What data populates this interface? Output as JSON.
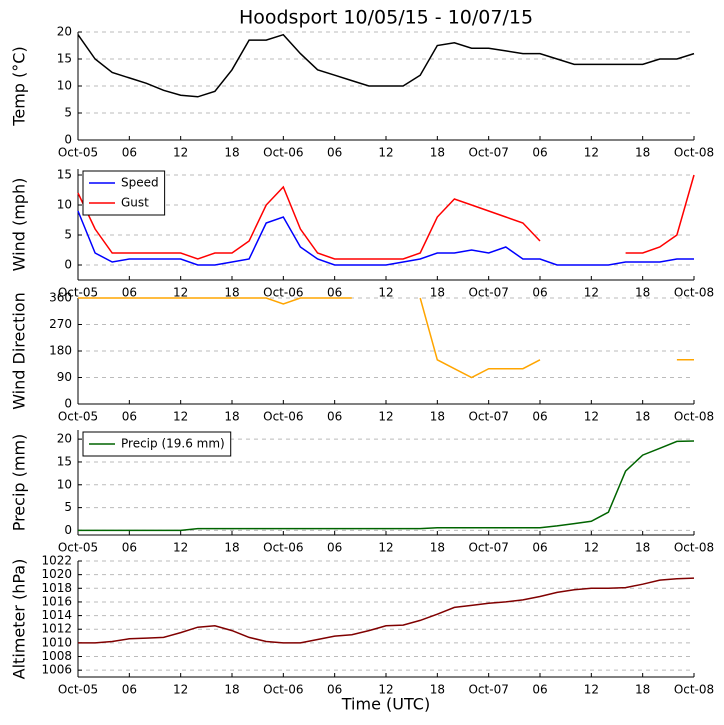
{
  "chart_data": [
    {
      "type": "line",
      "title": "Hoodsport 10/05/15 - 10/07/15",
      "ylabel": "Temp (°C)",
      "color": "#000000",
      "x": [
        0,
        2,
        4,
        6,
        8,
        10,
        12,
        14,
        16,
        18,
        20,
        22,
        24,
        26,
        28,
        30,
        32,
        34,
        36,
        38,
        40,
        42,
        44,
        46,
        48,
        50,
        52,
        54,
        56,
        58,
        60,
        62,
        64,
        66,
        68,
        70,
        72
      ],
      "values": [
        19.5,
        15,
        12.5,
        11.5,
        10.5,
        9.2,
        8.3,
        8,
        9,
        13,
        18.5,
        18.5,
        19.5,
        16,
        13,
        12,
        11,
        10,
        10,
        10,
        12,
        17.5,
        18,
        17,
        17,
        16.5,
        16,
        16,
        15,
        14,
        14,
        14,
        14,
        14,
        15,
        15,
        16
      ],
      "xlim": [
        0,
        72
      ],
      "xticks": [
        {
          "value": 0,
          "label": "Oct-05"
        },
        {
          "value": 6,
          "label": "06"
        },
        12,
        18,
        {
          "value": 24,
          "label": "Oct-06"
        },
        {
          "value": 30,
          "label": "06"
        },
        {
          "value": 36,
          "label": "12"
        },
        {
          "value": 42,
          "label": "18"
        },
        {
          "value": 48,
          "label": "Oct-07"
        },
        {
          "value": 54,
          "label": "06"
        },
        {
          "value": 60,
          "label": "12"
        },
        {
          "value": 66,
          "label": "18"
        },
        {
          "value": 72,
          "label": "Oct-08"
        }
      ],
      "ylim": [
        0,
        20
      ],
      "yticks": [
        0,
        5,
        10,
        15,
        20
      ],
      "grid": true
    },
    {
      "type": "line",
      "ylabel": "Wind (mph)",
      "legend": "upper left",
      "x": [
        0,
        2,
        4,
        6,
        8,
        10,
        12,
        14,
        16,
        18,
        20,
        22,
        24,
        26,
        28,
        30,
        32,
        34,
        36,
        38,
        40,
        42,
        44,
        46,
        48,
        50,
        52,
        54,
        56,
        58,
        60,
        62,
        64,
        66,
        68,
        70,
        72
      ],
      "series": [
        {
          "name": "Speed",
          "color": "#0000ff",
          "values": [
            9,
            2,
            0.5,
            1,
            1,
            1,
            1,
            0,
            0,
            0.5,
            1,
            7,
            8,
            3,
            1,
            0,
            0,
            0,
            0,
            0.5,
            1,
            2,
            2,
            2.5,
            2,
            3,
            1,
            1,
            0,
            0,
            0,
            0,
            0.5,
            0.5,
            0.5,
            1,
            1
          ]
        },
        {
          "name": "Gust",
          "color": "#ff0000",
          "values": [
            12,
            6,
            2,
            2,
            2,
            2,
            2,
            1,
            2,
            2,
            4,
            10,
            13,
            6,
            2,
            1,
            1,
            1,
            1,
            1,
            2,
            8,
            11,
            10,
            9,
            8,
            7,
            4,
            null,
            null,
            null,
            null,
            2,
            2,
            3,
            5,
            15
          ]
        }
      ],
      "xlim": [
        0,
        72
      ],
      "xticks": [
        {
          "value": 0,
          "label": "Oct-05"
        },
        {
          "value": 6,
          "label": "06"
        },
        12,
        18,
        {
          "value": 24,
          "label": "Oct-06"
        },
        {
          "value": 30,
          "label": "06"
        },
        {
          "value": 36,
          "label": "12"
        },
        {
          "value": 42,
          "label": "18"
        },
        {
          "value": 48,
          "label": "Oct-07"
        },
        {
          "value": 54,
          "label": "06"
        },
        {
          "value": 60,
          "label": "12"
        },
        {
          "value": 66,
          "label": "18"
        },
        {
          "value": 72,
          "label": "Oct-08"
        }
      ],
      "ylim": [
        -2.5,
        16
      ],
      "yticks": [
        0,
        5,
        10,
        15
      ],
      "grid": true
    },
    {
      "type": "line",
      "ylabel": "Wind Direction",
      "color": "#ffa500",
      "x": [
        0,
        2,
        4,
        6,
        8,
        10,
        12,
        14,
        16,
        18,
        20,
        22,
        24,
        26,
        28,
        30,
        32,
        34,
        36,
        38,
        40,
        42,
        44,
        46,
        48,
        50,
        52,
        54,
        56,
        58,
        60,
        62,
        64,
        66,
        68,
        70,
        72
      ],
      "values": [
        360,
        360,
        360,
        360,
        360,
        360,
        360,
        360,
        360,
        360,
        360,
        360,
        340,
        360,
        360,
        360,
        360,
        null,
        null,
        null,
        360,
        150,
        120,
        90,
        120,
        120,
        120,
        150,
        null,
        null,
        null,
        null,
        null,
        null,
        null,
        150,
        150
      ],
      "xlim": [
        0,
        72
      ],
      "xticks": [
        {
          "value": 0,
          "label": "Oct-05"
        },
        {
          "value": 6,
          "label": "06"
        },
        12,
        18,
        {
          "value": 24,
          "label": "Oct-06"
        },
        {
          "value": 30,
          "label": "06"
        },
        {
          "value": 36,
          "label": "12"
        },
        {
          "value": 42,
          "label": "18"
        },
        {
          "value": 48,
          "label": "Oct-07"
        },
        {
          "value": 54,
          "label": "06"
        },
        {
          "value": 60,
          "label": "12"
        },
        {
          "value": 66,
          "label": "18"
        },
        {
          "value": 72,
          "label": "Oct-08"
        }
      ],
      "ylim": [
        0,
        360
      ],
      "yticks": [
        0,
        90,
        180,
        270,
        360
      ],
      "grid": true
    },
    {
      "type": "line",
      "ylabel": "Precip (mm)",
      "legend": "upper left",
      "x": [
        0,
        2,
        4,
        6,
        8,
        10,
        12,
        14,
        16,
        18,
        20,
        22,
        24,
        26,
        28,
        30,
        32,
        34,
        36,
        38,
        40,
        42,
        44,
        46,
        48,
        50,
        52,
        54,
        56,
        58,
        60,
        62,
        64,
        66,
        68,
        70,
        72
      ],
      "series": [
        {
          "name": "Precip (19.6 mm)",
          "color": "#006400",
          "values": [
            0,
            0,
            0,
            0,
            0,
            0,
            0,
            0.4,
            0.4,
            0.4,
            0.4,
            0.4,
            0.4,
            0.4,
            0.4,
            0.4,
            0.4,
            0.4,
            0.4,
            0.4,
            0.4,
            0.6,
            0.6,
            0.6,
            0.6,
            0.6,
            0.6,
            0.6,
            1,
            1.5,
            2,
            4,
            13,
            16.5,
            18,
            19.5,
            19.6
          ]
        }
      ],
      "xlim": [
        0,
        72
      ],
      "xticks": [
        {
          "value": 0,
          "label": "Oct-05"
        },
        {
          "value": 6,
          "label": "06"
        },
        12,
        18,
        {
          "value": 24,
          "label": "Oct-06"
        },
        {
          "value": 30,
          "label": "06"
        },
        {
          "value": 36,
          "label": "12"
        },
        {
          "value": 42,
          "label": "18"
        },
        {
          "value": 48,
          "label": "Oct-07"
        },
        {
          "value": 54,
          "label": "06"
        },
        {
          "value": 60,
          "label": "12"
        },
        {
          "value": 66,
          "label": "18"
        },
        {
          "value": 72,
          "label": "Oct-08"
        }
      ],
      "ylim": [
        -1,
        22
      ],
      "yticks": [
        0,
        5,
        10,
        15,
        20
      ],
      "grid": true
    },
    {
      "type": "line",
      "ylabel": "Altimeter (hPa)",
      "xlabel": "Time (UTC)",
      "color": "#800000",
      "x": [
        0,
        2,
        4,
        6,
        8,
        10,
        12,
        14,
        16,
        18,
        20,
        22,
        24,
        26,
        28,
        30,
        32,
        34,
        36,
        38,
        40,
        42,
        44,
        46,
        48,
        50,
        52,
        54,
        56,
        58,
        60,
        62,
        64,
        66,
        68,
        70,
        72
      ],
      "values": [
        1010,
        1010,
        1010.2,
        1010.6,
        1010.7,
        1010.8,
        1011.5,
        1012.3,
        1012.5,
        1011.8,
        1010.8,
        1010.2,
        1010,
        1010,
        1010.5,
        1011,
        1011.2,
        1011.8,
        1012.5,
        1012.6,
        1013.3,
        1014.2,
        1015.2,
        1015.5,
        1015.8,
        1016,
        1016.3,
        1016.8,
        1017.4,
        1017.8,
        1018,
        1018,
        1018.1,
        1018.6,
        1019.2,
        1019.4,
        1019.5
      ],
      "xlim": [
        0,
        72
      ],
      "xticks": [
        {
          "value": 0,
          "label": "Oct-05"
        },
        {
          "value": 6,
          "label": "06"
        },
        12,
        18,
        {
          "value": 24,
          "label": "Oct-06"
        },
        {
          "value": 30,
          "label": "06"
        },
        {
          "value": 36,
          "label": "12"
        },
        {
          "value": 42,
          "label": "18"
        },
        {
          "value": 48,
          "label": "Oct-07"
        },
        {
          "value": 54,
          "label": "06"
        },
        {
          "value": 60,
          "label": "12"
        },
        {
          "value": 66,
          "label": "18"
        },
        {
          "value": 72,
          "label": "Oct-08"
        }
      ],
      "ylim": [
        1005,
        1022
      ],
      "yticks": [
        1006,
        1008,
        1010,
        1012,
        1014,
        1016,
        1018,
        1020,
        1022
      ],
      "grid": true
    }
  ]
}
